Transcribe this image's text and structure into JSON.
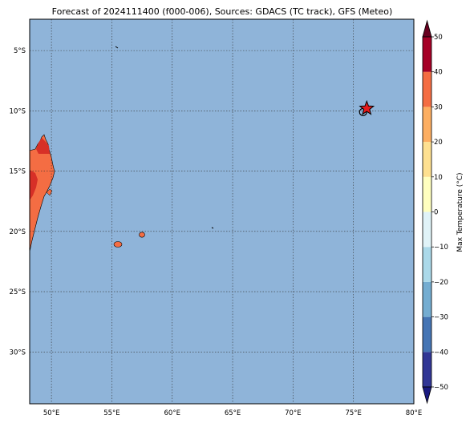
{
  "map": {
    "title": "Forecast of 2024111400 (f000-006), Sources: GDACS (TC track), GFS (Meteo)",
    "lon_range": [
      48.2,
      80.0
    ],
    "lat_range": [
      -34.3,
      -2.4
    ],
    "lon_ticks": [
      {
        "value": 50,
        "label": "50°E"
      },
      {
        "value": 55,
        "label": "55°E"
      },
      {
        "value": 60,
        "label": "60°E"
      },
      {
        "value": 65,
        "label": "65°E"
      },
      {
        "value": 70,
        "label": "70°E"
      },
      {
        "value": 75,
        "label": "75°E"
      },
      {
        "value": 80,
        "label": "80°E"
      }
    ],
    "lat_ticks": [
      {
        "value": -5,
        "label": "5°S"
      },
      {
        "value": -10,
        "label": "10°S"
      },
      {
        "value": -15,
        "label": "15°S"
      },
      {
        "value": -20,
        "label": "20°S"
      },
      {
        "value": -25,
        "label": "25°S"
      },
      {
        "value": -30,
        "label": "30°S"
      }
    ],
    "gridlines": true,
    "ocean_color": "#8fb4d9",
    "land_color_hot": "#f46d43",
    "land_color_hotter": "#d73027"
  },
  "storm": {
    "marker": "red-star",
    "lon": 76.1,
    "lat": -9.8,
    "track_marker": "open-circle",
    "track_lon": 75.8,
    "track_lat": -10.1
  },
  "colorbar": {
    "label": "Max Temperature (°C)",
    "range": [
      -50,
      50
    ],
    "ticks": [
      {
        "value": 50,
        "label": "50"
      },
      {
        "value": 40,
        "label": "40"
      },
      {
        "value": 30,
        "label": "30"
      },
      {
        "value": 20,
        "label": "20"
      },
      {
        "value": 10,
        "label": "10"
      },
      {
        "value": 0,
        "label": "0"
      },
      {
        "value": -10,
        "label": "−10"
      },
      {
        "value": -20,
        "label": "−20"
      },
      {
        "value": -30,
        "label": "−30"
      },
      {
        "value": -40,
        "label": "−40"
      },
      {
        "value": -50,
        "label": "−50"
      }
    ],
    "levels": [
      {
        "from": -50,
        "to": -40,
        "color": "#313695"
      },
      {
        "from": -40,
        "to": -30,
        "color": "#4575b4"
      },
      {
        "from": -30,
        "to": -20,
        "color": "#74add1"
      },
      {
        "from": -20,
        "to": -10,
        "color": "#abd9e9"
      },
      {
        "from": -10,
        "to": 0,
        "color": "#e0f3f8"
      },
      {
        "from": 0,
        "to": 10,
        "color": "#ffffbf"
      },
      {
        "from": 10,
        "to": 20,
        "color": "#fee090"
      },
      {
        "from": 20,
        "to": 30,
        "color": "#fdae61"
      },
      {
        "from": 30,
        "to": 40,
        "color": "#f46d43"
      },
      {
        "from": 40,
        "to": 50,
        "color": "#a50026"
      }
    ],
    "extend_low_color": "#1a1a80",
    "extend_high_color": "#67001f"
  }
}
